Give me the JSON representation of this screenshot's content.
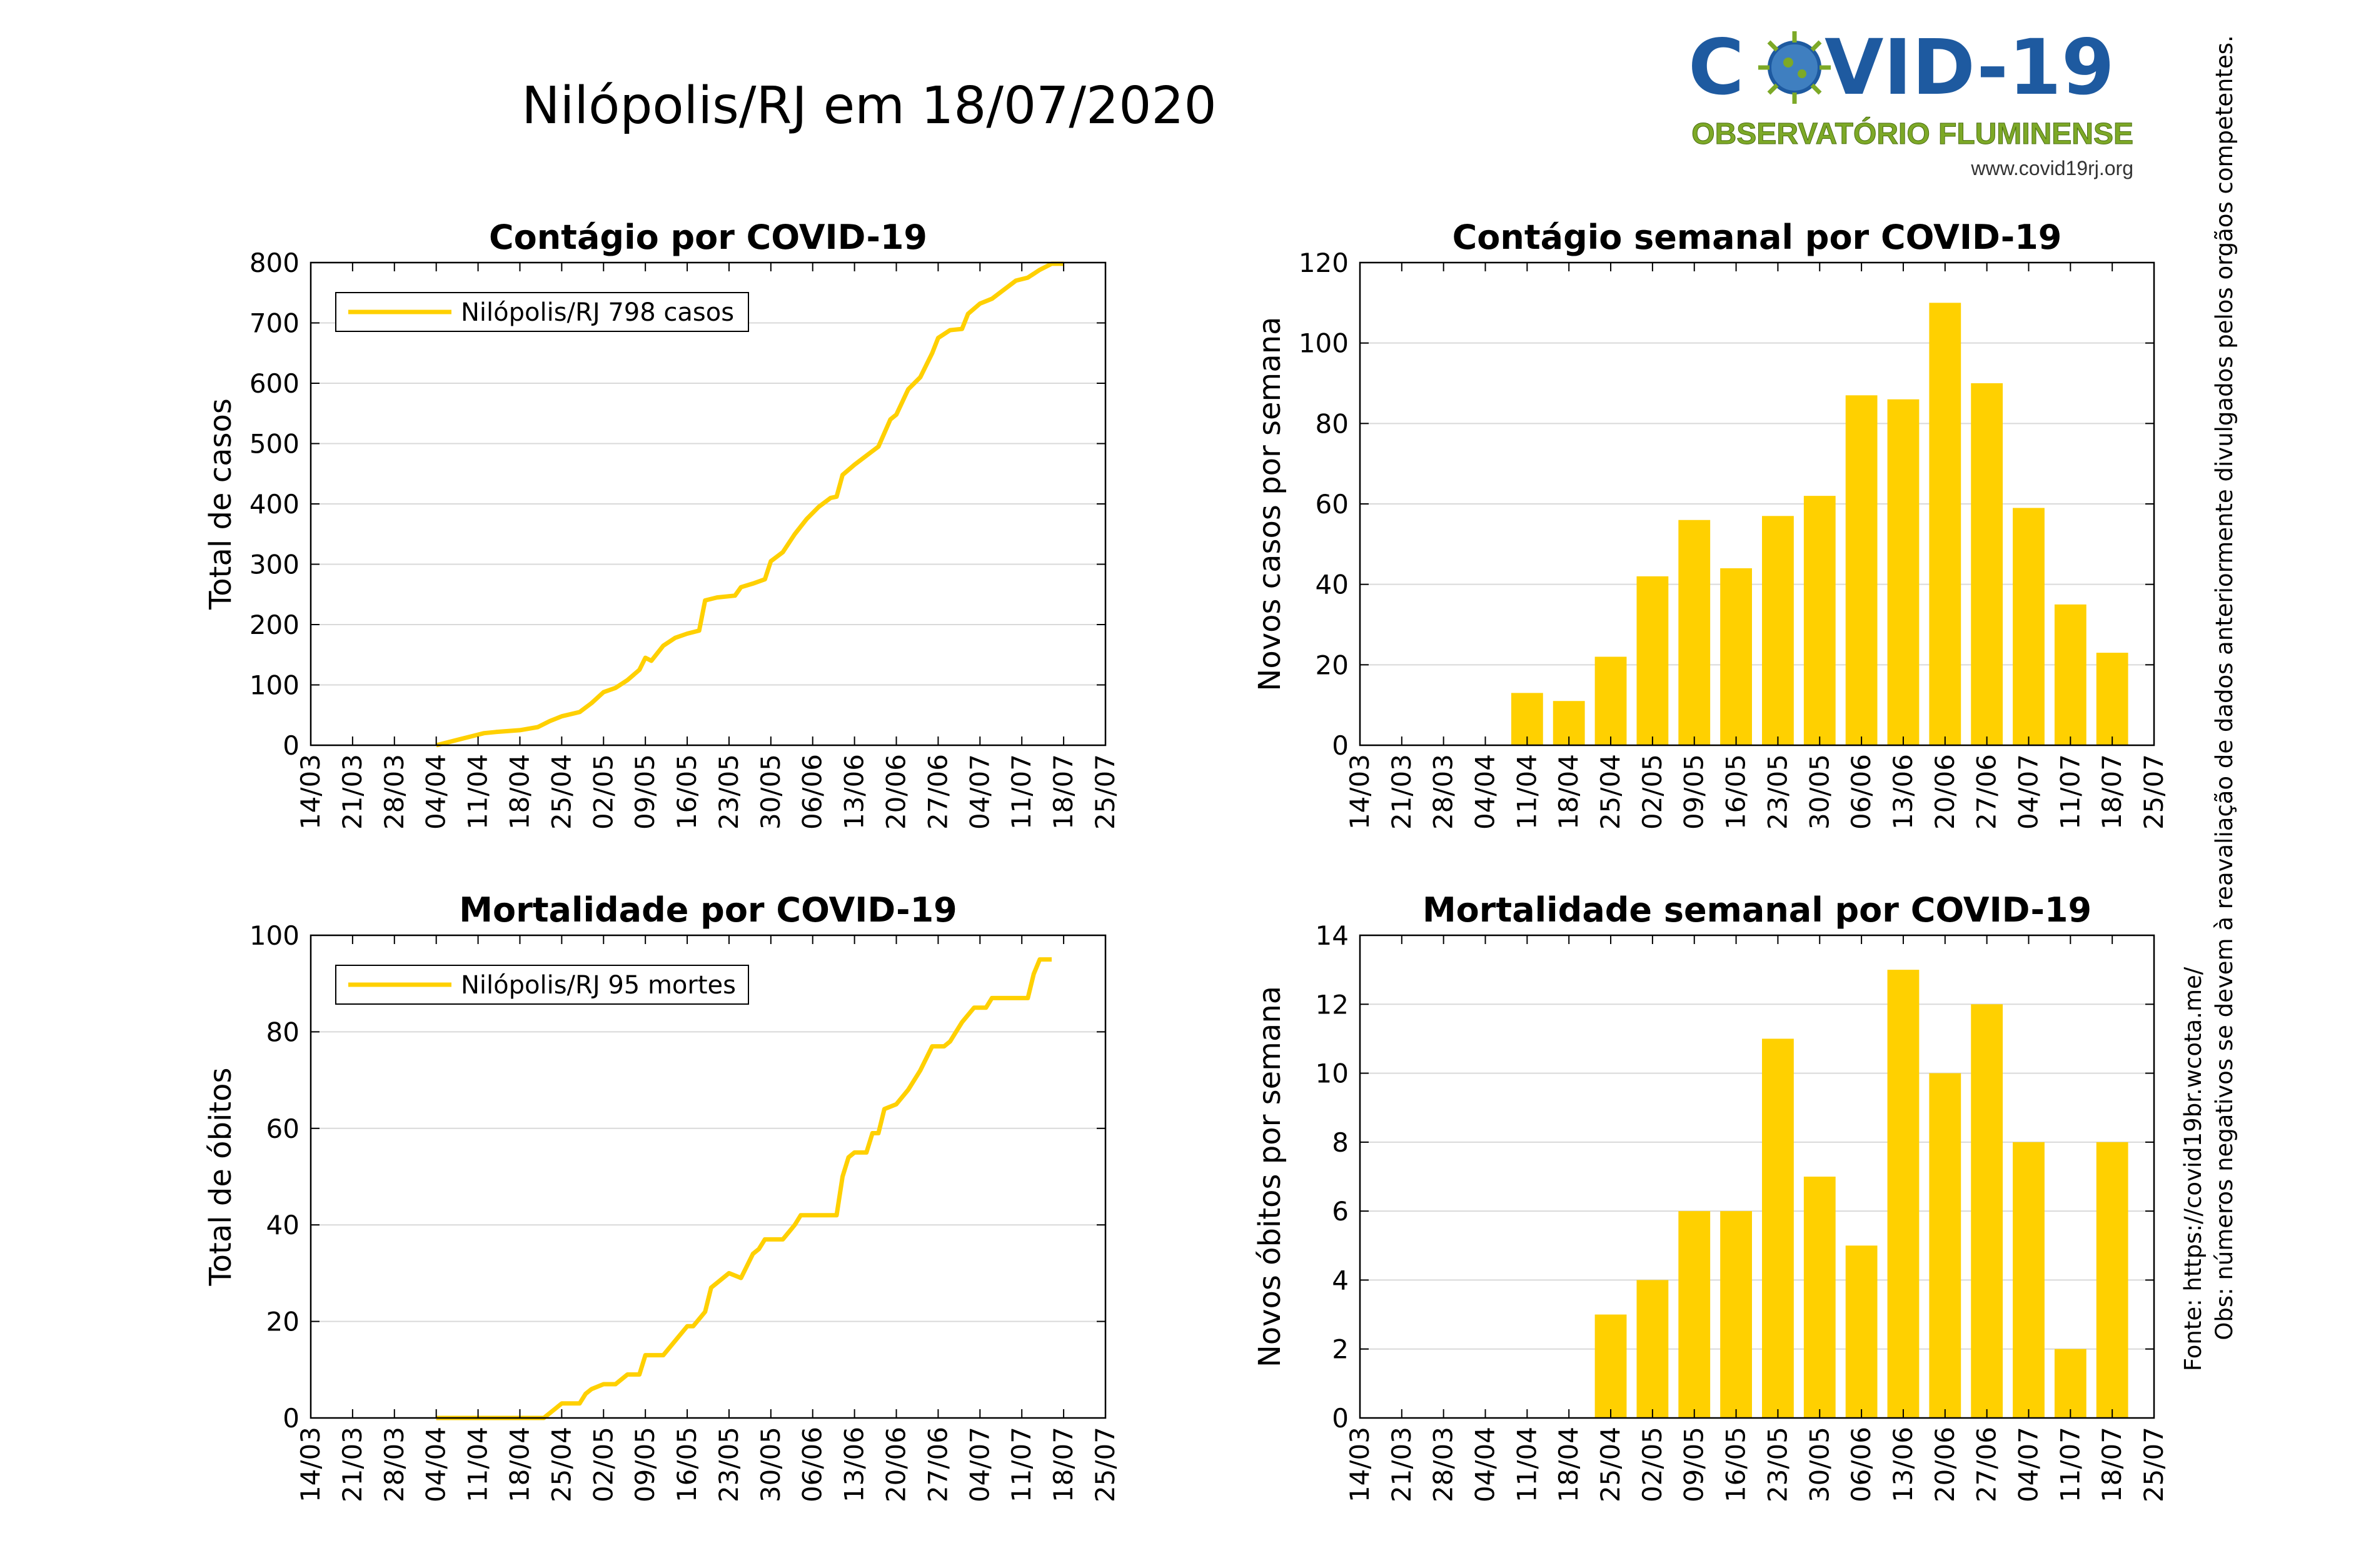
{
  "page": {
    "title": "Nilópolis/RJ em 18/07/2020",
    "logo": {
      "name_left": "C",
      "name_right": "VID-19",
      "subtitle": "OBSERVATÓRIO FLUMINENSE",
      "url": "www.covid19rj.org",
      "colors": {
        "blue": "#1e5aa0",
        "green": "#7da927",
        "virus": "#3f7fc0"
      }
    },
    "side_note": "Obs: números negativos se devem à reavaliação de dados anteriormente divulgados pelos orgãos competentes.",
    "source_note": "Fonte: https://covid19br.wcota.me/",
    "colors": {
      "series": "#ffd000",
      "grid": "#d9d9d9",
      "axis": "#000000"
    }
  },
  "chart_data": [
    {
      "type": "line",
      "title": "Contágio por COVID-19",
      "ylabel": "Total de casos",
      "xlabel": "",
      "ylim": [
        0,
        800
      ],
      "yticks": [
        0,
        100,
        200,
        300,
        400,
        500,
        600,
        700,
        800
      ],
      "xticks": [
        "14/03",
        "21/03",
        "28/03",
        "04/04",
        "11/04",
        "18/04",
        "25/04",
        "02/05",
        "09/05",
        "16/05",
        "23/05",
        "30/05",
        "06/06",
        "13/06",
        "20/06",
        "27/06",
        "04/07",
        "11/07",
        "18/07",
        "25/07"
      ],
      "legend": "Nilópolis/RJ  798 casos",
      "legend_position": "top-left",
      "grid": true,
      "series": [
        {
          "name": "Nilópolis/RJ",
          "points": [
            [
              "04/04",
              0
            ],
            [
              "06/04",
              5
            ],
            [
              "08/04",
              10
            ],
            [
              "10/04",
              15
            ],
            [
              "12/04",
              20
            ],
            [
              "14/04",
              22
            ],
            [
              "18/04",
              25
            ],
            [
              "21/04",
              30
            ],
            [
              "23/04",
              40
            ],
            [
              "25/04",
              48
            ],
            [
              "28/04",
              55
            ],
            [
              "30/04",
              70
            ],
            [
              "02/05",
              88
            ],
            [
              "04/05",
              95
            ],
            [
              "06/05",
              108
            ],
            [
              "08/05",
              125
            ],
            [
              "09/05",
              145
            ],
            [
              "10/05",
              140
            ],
            [
              "12/05",
              165
            ],
            [
              "14/05",
              178
            ],
            [
              "16/05",
              185
            ],
            [
              "18/05",
              190
            ],
            [
              "19/05",
              240
            ],
            [
              "21/05",
              245
            ],
            [
              "24/05",
              248
            ],
            [
              "25/05",
              262
            ],
            [
              "27/05",
              268
            ],
            [
              "29/05",
              275
            ],
            [
              "30/05",
              305
            ],
            [
              "01/06",
              320
            ],
            [
              "03/06",
              350
            ],
            [
              "05/06",
              375
            ],
            [
              "07/06",
              395
            ],
            [
              "09/06",
              410
            ],
            [
              "10/06",
              412
            ],
            [
              "11/06",
              448
            ],
            [
              "13/06",
              465
            ],
            [
              "15/06",
              480
            ],
            [
              "17/06",
              495
            ],
            [
              "19/06",
              540
            ],
            [
              "20/06",
              548
            ],
            [
              "22/06",
              590
            ],
            [
              "24/06",
              610
            ],
            [
              "26/06",
              650
            ],
            [
              "27/06",
              675
            ],
            [
              "29/06",
              688
            ],
            [
              "01/07",
              690
            ],
            [
              "02/07",
              715
            ],
            [
              "04/07",
              732
            ],
            [
              "06/07",
              740
            ],
            [
              "08/07",
              755
            ],
            [
              "10/07",
              770
            ],
            [
              "12/07",
              775
            ],
            [
              "14/07",
              788
            ],
            [
              "16/07",
              798
            ],
            [
              "18/07",
              798
            ]
          ]
        }
      ]
    },
    {
      "type": "bar",
      "title": "Contágio semanal por COVID-19",
      "ylabel": "Novos casos por semana",
      "xlabel": "",
      "ylim": [
        0,
        120
      ],
      "yticks": [
        0,
        20,
        40,
        60,
        80,
        100,
        120
      ],
      "categories": [
        "14/03",
        "21/03",
        "28/03",
        "04/04",
        "11/04",
        "18/04",
        "25/04",
        "02/05",
        "09/05",
        "16/05",
        "23/05",
        "30/05",
        "06/06",
        "13/06",
        "20/06",
        "27/06",
        "04/07",
        "11/07",
        "18/07",
        "25/07"
      ],
      "values": [
        0,
        0,
        0,
        0,
        13,
        11,
        22,
        42,
        56,
        44,
        57,
        62,
        87,
        86,
        110,
        90,
        59,
        35,
        23,
        null
      ],
      "grid": true
    },
    {
      "type": "line",
      "title": "Mortalidade por COVID-19",
      "ylabel": "Total de óbitos",
      "xlabel": "",
      "ylim": [
        0,
        100
      ],
      "yticks": [
        0,
        20,
        40,
        60,
        80,
        100
      ],
      "xticks": [
        "14/03",
        "21/03",
        "28/03",
        "04/04",
        "11/04",
        "18/04",
        "25/04",
        "02/05",
        "09/05",
        "16/05",
        "23/05",
        "30/05",
        "06/06",
        "13/06",
        "20/06",
        "27/06",
        "04/07",
        "11/07",
        "18/07",
        "25/07"
      ],
      "legend": "Nilópolis/RJ  95 mortes",
      "legend_position": "top-left",
      "grid": true,
      "series": [
        {
          "name": "Nilópolis/RJ",
          "points": [
            [
              "04/04",
              0
            ],
            [
              "22/04",
              0
            ],
            [
              "24/04",
              2
            ],
            [
              "25/04",
              3
            ],
            [
              "28/04",
              3
            ],
            [
              "29/04",
              5
            ],
            [
              "30/04",
              6
            ],
            [
              "02/05",
              7
            ],
            [
              "04/05",
              7
            ],
            [
              "06/05",
              9
            ],
            [
              "08/05",
              9
            ],
            [
              "09/05",
              13
            ],
            [
              "12/05",
              13
            ],
            [
              "14/05",
              16
            ],
            [
              "16/05",
              19
            ],
            [
              "17/05",
              19
            ],
            [
              "19/05",
              22
            ],
            [
              "20/05",
              27
            ],
            [
              "22/05",
              29
            ],
            [
              "23/05",
              30
            ],
            [
              "25/05",
              29
            ],
            [
              "27/05",
              34
            ],
            [
              "28/05",
              35
            ],
            [
              "29/05",
              37
            ],
            [
              "01/06",
              37
            ],
            [
              "03/06",
              40
            ],
            [
              "04/06",
              42
            ],
            [
              "05/06",
              42
            ],
            [
              "10/06",
              42
            ],
            [
              "11/06",
              50
            ],
            [
              "12/06",
              54
            ],
            [
              "13/06",
              55
            ],
            [
              "15/06",
              55
            ],
            [
              "16/06",
              59
            ],
            [
              "17/06",
              59
            ],
            [
              "18/06",
              64
            ],
            [
              "20/06",
              65
            ],
            [
              "22/06",
              68
            ],
            [
              "24/06",
              72
            ],
            [
              "26/06",
              77
            ],
            [
              "28/06",
              77
            ],
            [
              "29/06",
              78
            ],
            [
              "01/07",
              82
            ],
            [
              "03/07",
              85
            ],
            [
              "05/07",
              85
            ],
            [
              "06/07",
              87
            ],
            [
              "12/07",
              87
            ],
            [
              "13/07",
              92
            ],
            [
              "14/07",
              95
            ],
            [
              "16/07",
              95
            ]
          ]
        }
      ]
    },
    {
      "type": "bar",
      "title": "Mortalidade semanal por COVID-19",
      "ylabel": "Novos óbitos por semana",
      "xlabel": "",
      "ylim": [
        0,
        14
      ],
      "yticks": [
        0,
        2,
        4,
        6,
        8,
        10,
        12,
        14
      ],
      "categories": [
        "14/03",
        "21/03",
        "28/03",
        "04/04",
        "11/04",
        "18/04",
        "25/04",
        "02/05",
        "09/05",
        "16/05",
        "23/05",
        "30/05",
        "06/06",
        "13/06",
        "20/06",
        "27/06",
        "04/07",
        "11/07",
        "18/07",
        "25/07"
      ],
      "values": [
        0,
        0,
        0,
        0,
        0,
        0,
        3,
        4,
        6,
        6,
        11,
        7,
        5,
        13,
        10,
        12,
        8,
        2,
        8,
        null
      ],
      "grid": true
    }
  ]
}
